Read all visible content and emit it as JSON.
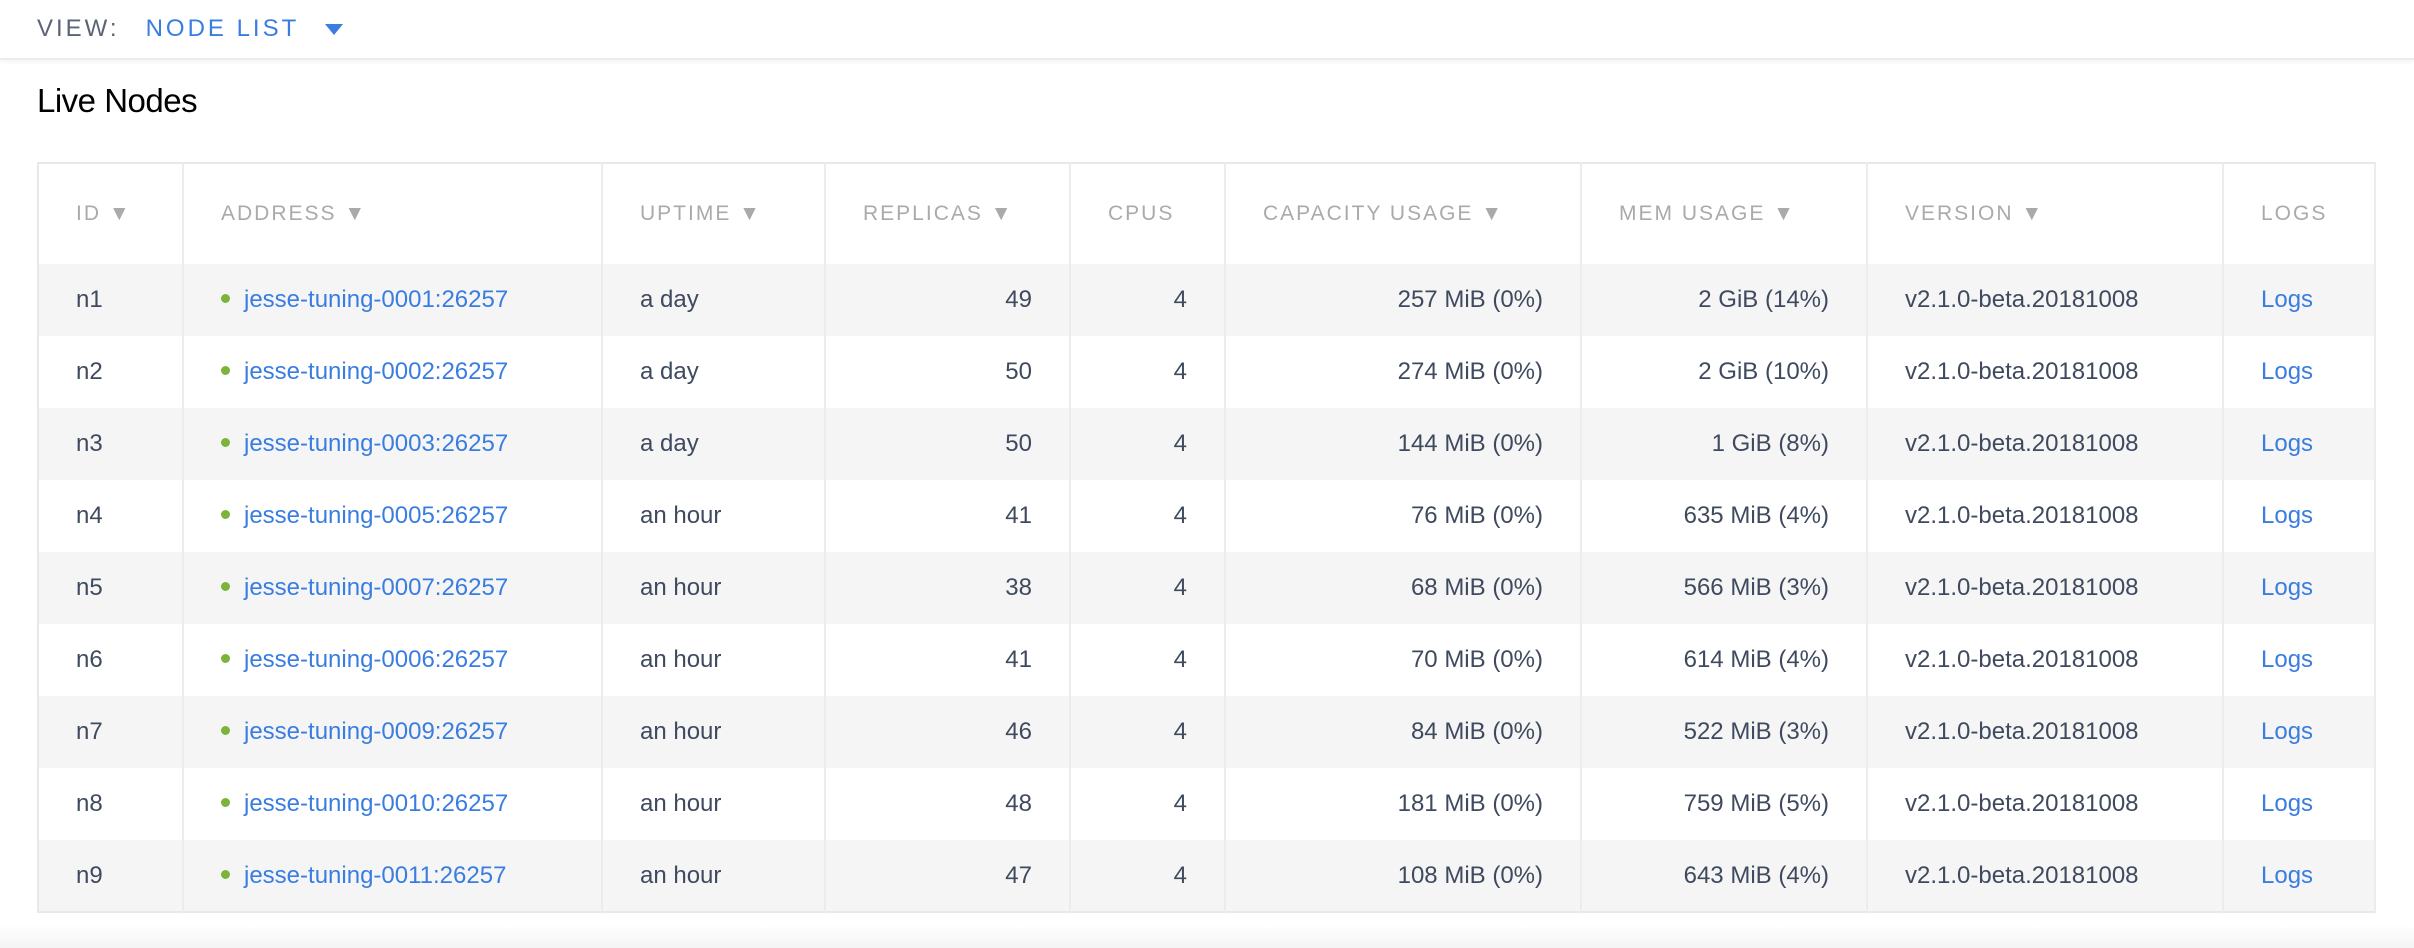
{
  "view": {
    "label": "VIEW:",
    "selected": "NODE LIST"
  },
  "title": "Live Nodes",
  "colors": {
    "accent": "#3a7de1",
    "status_live": "#7bb33b"
  },
  "columns": [
    "ID ▼",
    "ADDRESS ▼",
    "UPTIME ▼",
    "REPLICAS ▼",
    "CPUS",
    "CAPACITY USAGE ▼",
    "MEM USAGE ▼",
    "VERSION ▼",
    "LOGS"
  ],
  "rows": [
    {
      "id": "n1",
      "address": "jesse-tuning-0001:26257",
      "uptime": "a day",
      "replicas": "49",
      "cpus": "4",
      "capacity": "257 MiB (0%)",
      "mem": "2 GiB (14%)",
      "version": "v2.1.0-beta.20181008",
      "logs": "Logs"
    },
    {
      "id": "n2",
      "address": "jesse-tuning-0002:26257",
      "uptime": "a day",
      "replicas": "50",
      "cpus": "4",
      "capacity": "274 MiB (0%)",
      "mem": "2 GiB (10%)",
      "version": "v2.1.0-beta.20181008",
      "logs": "Logs"
    },
    {
      "id": "n3",
      "address": "jesse-tuning-0003:26257",
      "uptime": "a day",
      "replicas": "50",
      "cpus": "4",
      "capacity": "144 MiB (0%)",
      "mem": "1 GiB (8%)",
      "version": "v2.1.0-beta.20181008",
      "logs": "Logs"
    },
    {
      "id": "n4",
      "address": "jesse-tuning-0005:26257",
      "uptime": "an hour",
      "replicas": "41",
      "cpus": "4",
      "capacity": "76 MiB (0%)",
      "mem": "635 MiB (4%)",
      "version": "v2.1.0-beta.20181008",
      "logs": "Logs"
    },
    {
      "id": "n5",
      "address": "jesse-tuning-0007:26257",
      "uptime": "an hour",
      "replicas": "38",
      "cpus": "4",
      "capacity": "68 MiB (0%)",
      "mem": "566 MiB (3%)",
      "version": "v2.1.0-beta.20181008",
      "logs": "Logs"
    },
    {
      "id": "n6",
      "address": "jesse-tuning-0006:26257",
      "uptime": "an hour",
      "replicas": "41",
      "cpus": "4",
      "capacity": "70 MiB (0%)",
      "mem": "614 MiB (4%)",
      "version": "v2.1.0-beta.20181008",
      "logs": "Logs"
    },
    {
      "id": "n7",
      "address": "jesse-tuning-0009:26257",
      "uptime": "an hour",
      "replicas": "46",
      "cpus": "4",
      "capacity": "84 MiB (0%)",
      "mem": "522 MiB (3%)",
      "version": "v2.1.0-beta.20181008",
      "logs": "Logs"
    },
    {
      "id": "n8",
      "address": "jesse-tuning-0010:26257",
      "uptime": "an hour",
      "replicas": "48",
      "cpus": "4",
      "capacity": "181 MiB (0%)",
      "mem": "759 MiB (5%)",
      "version": "v2.1.0-beta.20181008",
      "logs": "Logs"
    },
    {
      "id": "n9",
      "address": "jesse-tuning-0011:26257",
      "uptime": "an hour",
      "replicas": "47",
      "cpus": "4",
      "capacity": "108 MiB (0%)",
      "mem": "643 MiB (4%)",
      "version": "v2.1.0-beta.20181008",
      "logs": "Logs"
    }
  ]
}
